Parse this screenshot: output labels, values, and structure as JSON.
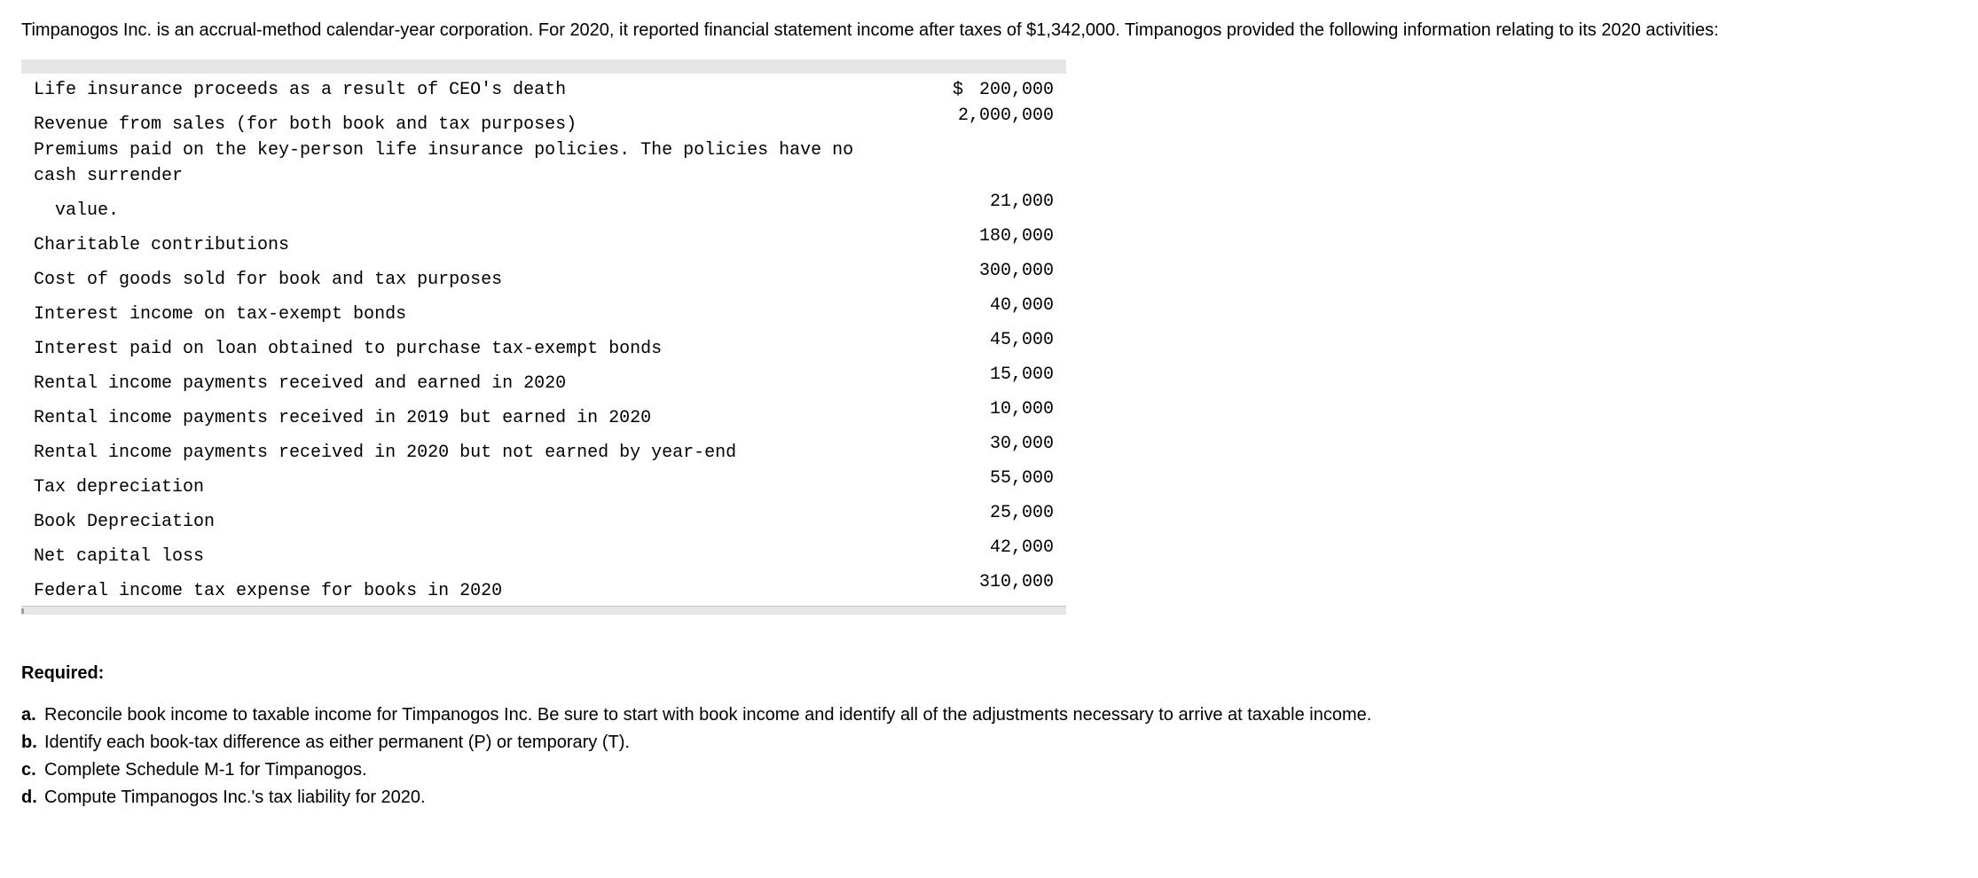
{
  "intro": "Timpanogos Inc. is an accrual-method calendar-year corporation. For 2020, it reported financial statement income after taxes of $1,342,000. Timpanogos provided the following information relating to its 2020 activities:",
  "rows": [
    {
      "label": "Life insurance proceeds as a result of CEO's death",
      "dollar": "$",
      "amount": "200,000",
      "indent": false
    },
    {
      "label": "Revenue from sales (for both book and tax purposes)",
      "dollar": "",
      "amount": "2,000,000",
      "indent": false
    },
    {
      "label": "Premiums paid on the key-person life insurance policies. The policies have no cash surrender",
      "dollar": "",
      "amount": "",
      "indent": false
    },
    {
      "label": "value.",
      "dollar": "",
      "amount": "21,000",
      "indent": true
    },
    {
      "label": "Charitable contributions",
      "dollar": "",
      "amount": "180,000",
      "indent": false
    },
    {
      "label": "Cost of goods sold for book and tax purposes",
      "dollar": "",
      "amount": "300,000",
      "indent": false
    },
    {
      "label": "Interest income on tax-exempt bonds",
      "dollar": "",
      "amount": "40,000",
      "indent": false
    },
    {
      "label": "Interest paid on loan obtained to purchase tax-exempt bonds",
      "dollar": "",
      "amount": "45,000",
      "indent": false
    },
    {
      "label": "Rental income payments received and earned in 2020",
      "dollar": "",
      "amount": "15,000",
      "indent": false
    },
    {
      "label": "Rental income payments received in 2019 but earned in 2020",
      "dollar": "",
      "amount": "10,000",
      "indent": false
    },
    {
      "label": "Rental income payments received in 2020 but not earned by year-end",
      "dollar": "",
      "amount": "30,000",
      "indent": false
    },
    {
      "label": "Tax depreciation",
      "dollar": "",
      "amount": "55,000",
      "indent": false
    },
    {
      "label": "Book Depreciation",
      "dollar": "",
      "amount": "25,000",
      "indent": false
    },
    {
      "label": "Net capital loss",
      "dollar": "",
      "amount": "42,000",
      "indent": false
    },
    {
      "label": "Federal income tax expense for books in 2020",
      "dollar": "",
      "amount": "310,000",
      "indent": false
    }
  ],
  "required_heading": "Required:",
  "requirements": [
    {
      "marker": "a.",
      "text": "Reconcile book income to taxable income for Timpanogos Inc. Be sure to start with book income and identify all of the adjustments necessary to arrive at taxable income."
    },
    {
      "marker": "b.",
      "text": "Identify each book-tax difference as either permanent (P) or temporary (T)."
    },
    {
      "marker": "c.",
      "text": "Complete Schedule M-1 for Timpanogos."
    },
    {
      "marker": "d.",
      "text": "Compute Timpanogos Inc.'s tax liability for 2020."
    }
  ]
}
